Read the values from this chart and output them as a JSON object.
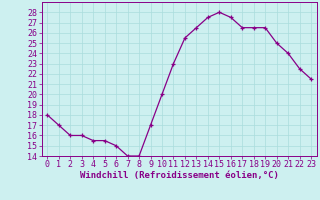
{
  "x": [
    0,
    1,
    2,
    3,
    4,
    5,
    6,
    7,
    8,
    9,
    10,
    11,
    12,
    13,
    14,
    15,
    16,
    17,
    18,
    19,
    20,
    21,
    22,
    23
  ],
  "y": [
    18.0,
    17.0,
    16.0,
    16.0,
    15.5,
    15.5,
    15.0,
    14.0,
    14.0,
    17.0,
    20.0,
    23.0,
    25.5,
    26.5,
    27.5,
    28.0,
    27.5,
    26.5,
    26.5,
    26.5,
    25.0,
    24.0,
    22.5,
    21.5
  ],
  "line_color": "#880088",
  "marker": "+",
  "marker_size": 3,
  "bg_color": "#cdf0f0",
  "grid_color": "#aadddd",
  "xlabel": "Windchill (Refroidissement éolien,°C)",
  "xlabel_fontsize": 6.5,
  "tick_fontsize": 6.0,
  "ylim": [
    14,
    29
  ],
  "yticks": [
    14,
    15,
    16,
    17,
    18,
    19,
    20,
    21,
    22,
    23,
    24,
    25,
    26,
    27,
    28
  ],
  "xticks": [
    0,
    1,
    2,
    3,
    4,
    5,
    6,
    7,
    8,
    9,
    10,
    11,
    12,
    13,
    14,
    15,
    16,
    17,
    18,
    19,
    20,
    21,
    22,
    23
  ],
  "xlim": [
    -0.5,
    23.5
  ]
}
